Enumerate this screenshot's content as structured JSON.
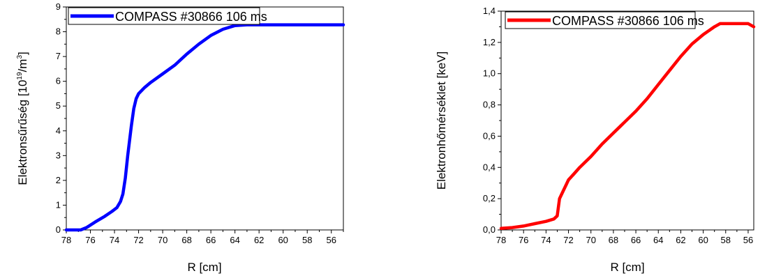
{
  "chart_data": [
    {
      "type": "line",
      "xlabel": "R [cm]",
      "ylabel_main": "Elektronsűrűség [10",
      "ylabel_exp1": "19",
      "ylabel_mid": "/m",
      "ylabel_exp2": "3",
      "ylabel_end": "]",
      "legend": "COMPASS #30866 106 ms",
      "legend_position": "top",
      "line_color": "#0000ff",
      "x_reversed": true,
      "xlim": [
        78,
        55
      ],
      "ylim": [
        0,
        9
      ],
      "x_ticks": [
        "78",
        "76",
        "74",
        "72",
        "70",
        "68",
        "66",
        "64",
        "62",
        "60",
        "58",
        "56"
      ],
      "y_ticks": [
        "0",
        "1",
        "2",
        "3",
        "4",
        "5",
        "6",
        "7",
        "8",
        "9"
      ],
      "series": [
        {
          "x": [
            78,
            76.8,
            76.3,
            75.6,
            74.8,
            74.2,
            73.8,
            73.5,
            73.3,
            73.1,
            72.9,
            72.6,
            72.4,
            72.2,
            72.0,
            71.8,
            71.5,
            71.0,
            70.0,
            69.0,
            68.0,
            67.0,
            66.0,
            65.0,
            64.0,
            63.0,
            62.0,
            55.0
          ],
          "y": [
            0,
            0,
            0.1,
            0.32,
            0.55,
            0.75,
            0.9,
            1.15,
            1.45,
            2.1,
            3.0,
            4.2,
            4.9,
            5.3,
            5.5,
            5.6,
            5.75,
            5.95,
            6.3,
            6.65,
            7.1,
            7.5,
            7.85,
            8.1,
            8.25,
            8.28,
            8.28,
            8.28
          ]
        }
      ]
    },
    {
      "type": "line",
      "xlabel": "R [cm]",
      "ylabel": "Elektronhőmérséklet [keV]",
      "legend": "COMPASS #30866 106 ms",
      "legend_position": "top",
      "line_color": "#ff0000",
      "x_reversed": true,
      "xlim": [
        78,
        55.5
      ],
      "ylim": [
        0,
        1.4
      ],
      "x_ticks": [
        "78",
        "76",
        "74",
        "72",
        "70",
        "68",
        "66",
        "64",
        "62",
        "60",
        "58",
        "56"
      ],
      "y_ticks": [
        "0,0",
        "0,2",
        "0,4",
        "0,6",
        "0,8",
        "1,0",
        "1,2",
        "1,4"
      ],
      "series": [
        {
          "x": [
            78,
            77,
            76,
            75,
            74,
            73.3,
            73.0,
            72.8,
            72.6,
            72.2,
            72.0,
            71.5,
            71.0,
            70.0,
            69.0,
            68.0,
            67.0,
            66.0,
            65.0,
            64.0,
            63.0,
            62.0,
            61.0,
            60.0,
            59.0,
            58.5,
            58.0,
            57.0,
            56.0,
            55.5
          ],
          "y": [
            0.01,
            0.015,
            0.025,
            0.04,
            0.055,
            0.07,
            0.09,
            0.2,
            0.23,
            0.29,
            0.32,
            0.36,
            0.4,
            0.47,
            0.55,
            0.62,
            0.69,
            0.76,
            0.84,
            0.93,
            1.02,
            1.11,
            1.19,
            1.25,
            1.3,
            1.32,
            1.32,
            1.32,
            1.32,
            1.3
          ]
        }
      ]
    }
  ]
}
